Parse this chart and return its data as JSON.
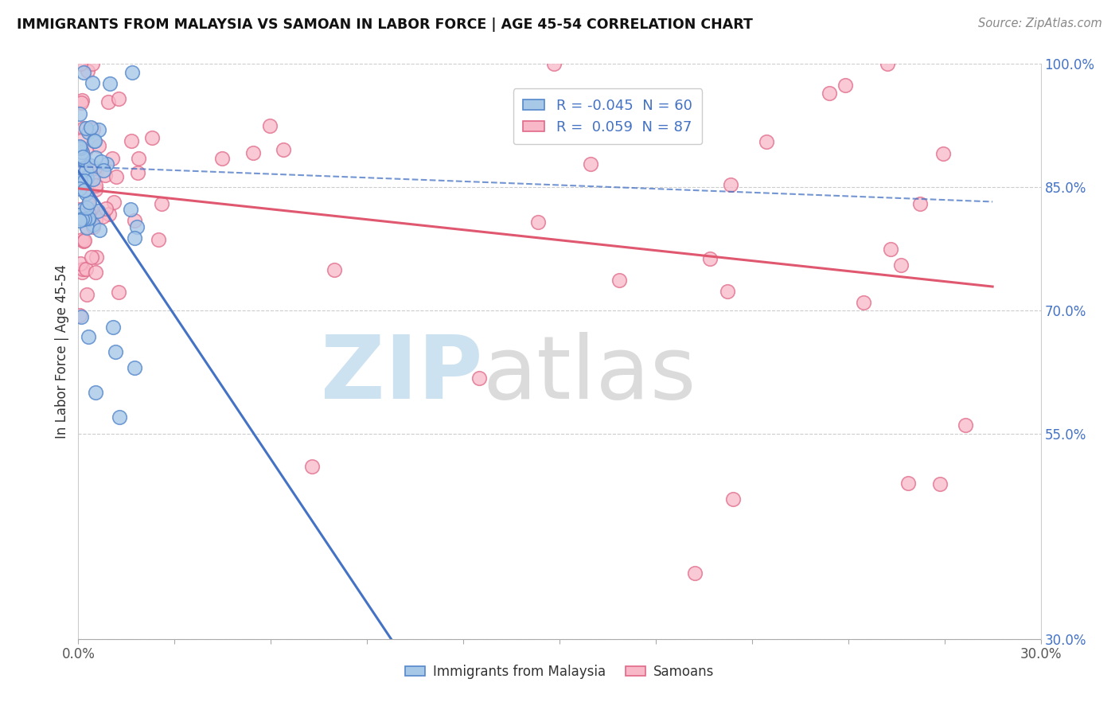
{
  "title": "IMMIGRANTS FROM MALAYSIA VS SAMOAN IN LABOR FORCE | AGE 45-54 CORRELATION CHART",
  "source": "Source: ZipAtlas.com",
  "ylabel": "In Labor Force | Age 45-54",
  "r_malaysia": -0.045,
  "n_malaysia": 60,
  "r_samoan": 0.059,
  "n_samoan": 87,
  "xlim": [
    0.0,
    0.3
  ],
  "ylim": [
    0.3,
    1.0
  ],
  "xtick_labels": [
    "0.0%",
    "30.0%"
  ],
  "ytick_positions": [
    0.3,
    0.55,
    0.7,
    0.85,
    1.0
  ],
  "ytick_labels": [
    "30.0%",
    "55.0%",
    "70.0%",
    "85.0%",
    "100.0%"
  ],
  "color_malaysia": "#a8c8e8",
  "color_samoan": "#f8b8c8",
  "edge_color_malaysia": "#5588cc",
  "edge_color_samoan": "#e06888",
  "line_color_malaysia": "#4472c4",
  "line_color_samoan": "#e05870",
  "grid_color": "#cccccc",
  "watermark_zip_color": "#c8dff0",
  "watermark_atlas_color": "#d8d8d8"
}
